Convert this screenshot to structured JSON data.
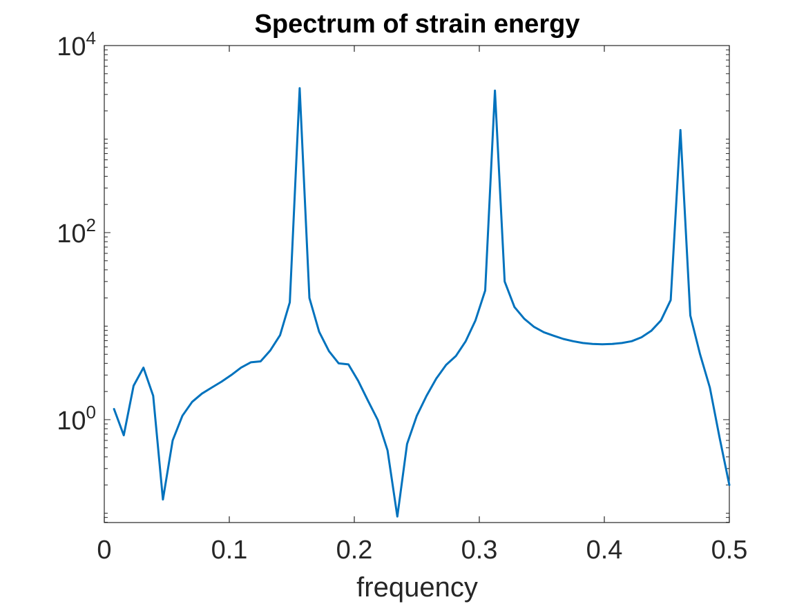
{
  "chart_data": {
    "type": "line",
    "title": "Spectrum of strain energy",
    "xlabel": "frequency",
    "ylabel": "",
    "yscale": "log",
    "xlim": [
      0,
      0.5
    ],
    "ylim": [
      0.0794,
      10000
    ],
    "grid": false,
    "legend": "none",
    "x_ticks": [
      {
        "value": 0,
        "label": "0"
      },
      {
        "value": 0.1,
        "label": "0.1"
      },
      {
        "value": 0.2,
        "label": "0.2"
      },
      {
        "value": 0.3,
        "label": "0.3"
      },
      {
        "value": 0.4,
        "label": "0.4"
      },
      {
        "value": 0.5,
        "label": "0.5"
      }
    ],
    "y_ticks": [
      {
        "value": 1,
        "base": "10",
        "exp": "0"
      },
      {
        "value": 100,
        "base": "10",
        "exp": "2"
      },
      {
        "value": 10000,
        "base": "10",
        "exp": "4"
      }
    ],
    "series": [
      {
        "color": "#0072BD",
        "x": [
          0.0078,
          0.0156,
          0.0234,
          0.0313,
          0.0391,
          0.0469,
          0.0547,
          0.0625,
          0.0703,
          0.0781,
          0.0859,
          0.0938,
          0.1016,
          0.1094,
          0.1172,
          0.125,
          0.1328,
          0.1406,
          0.1484,
          0.1563,
          0.1641,
          0.1719,
          0.1797,
          0.1875,
          0.1953,
          0.2031,
          0.2109,
          0.2188,
          0.2266,
          0.2344,
          0.2422,
          0.25,
          0.2578,
          0.2656,
          0.2734,
          0.2813,
          0.2891,
          0.2969,
          0.3047,
          0.3125,
          0.3203,
          0.3281,
          0.3359,
          0.3438,
          0.3516,
          0.3594,
          0.3672,
          0.375,
          0.3828,
          0.3906,
          0.3984,
          0.4063,
          0.4141,
          0.4219,
          0.4297,
          0.4375,
          0.4453,
          0.4531,
          0.4609,
          0.4688,
          0.4766,
          0.4844,
          0.4922,
          0.5
        ],
        "y": [
          1.3,
          0.68,
          2.3,
          3.6,
          1.8,
          0.14,
          0.6,
          1.1,
          1.55,
          1.9,
          2.2,
          2.55,
          3.0,
          3.6,
          4.1,
          4.2,
          5.5,
          8.0,
          18,
          3500,
          20,
          8.7,
          5.4,
          4.0,
          3.9,
          2.6,
          1.6,
          0.99,
          0.47,
          0.092,
          0.55,
          1.1,
          1.8,
          2.75,
          3.85,
          4.8,
          6.9,
          11.5,
          24,
          3300,
          30,
          16,
          12,
          9.8,
          8.6,
          7.9,
          7.3,
          6.9,
          6.6,
          6.45,
          6.4,
          6.45,
          6.6,
          6.9,
          7.6,
          8.9,
          11.5,
          19,
          1250,
          13,
          5.0,
          2.2,
          0.64,
          0.2
        ]
      }
    ]
  }
}
